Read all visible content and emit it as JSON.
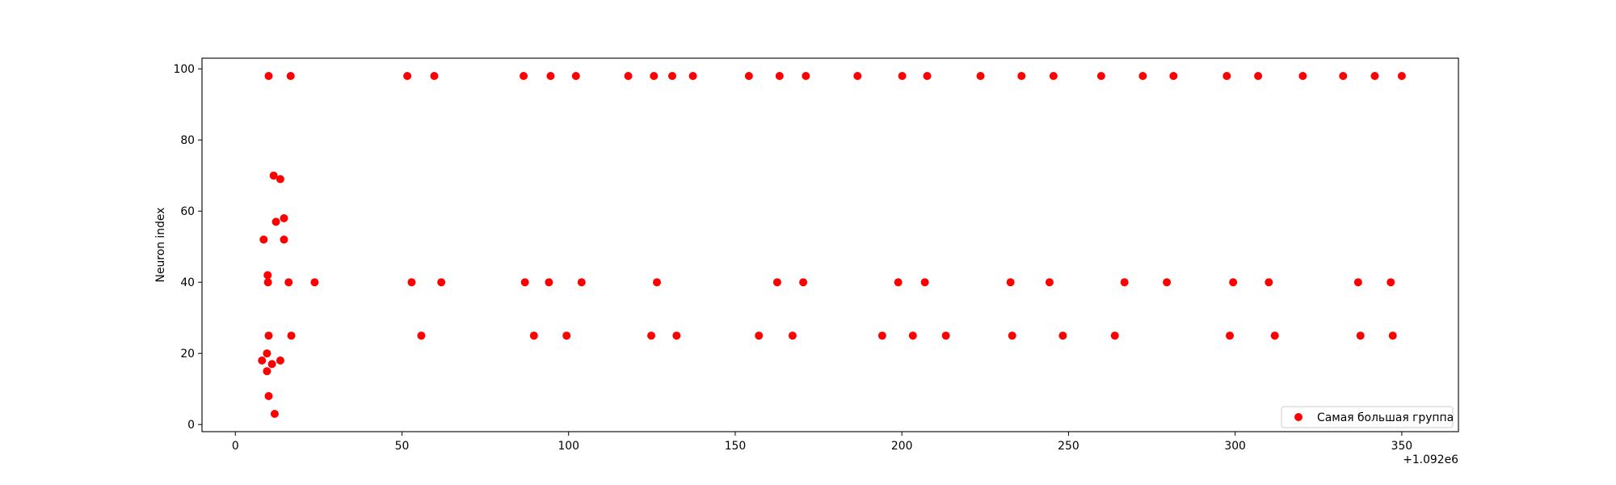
{
  "chart_data": {
    "type": "scatter",
    "title": "",
    "xlabel": "",
    "ylabel": "Neuron index",
    "x_offset_label": "+1.092e6",
    "xlim": [
      -10,
      367
    ],
    "ylim": [
      -2,
      103
    ],
    "x_ticks": [
      0,
      50,
      100,
      150,
      200,
      250,
      300,
      350
    ],
    "y_ticks": [
      0,
      20,
      40,
      60,
      80,
      100
    ],
    "grid": false,
    "legend_position": "lower right",
    "series": [
      {
        "name": "Самая большая группа",
        "color": "#ff0000",
        "points": [
          [
            8,
            18
          ],
          [
            8.5,
            52
          ],
          [
            9.5,
            15
          ],
          [
            9.5,
            20
          ],
          [
            9.7,
            42
          ],
          [
            9.8,
            40
          ],
          [
            10,
            25
          ],
          [
            10,
            98
          ],
          [
            10,
            8
          ],
          [
            11,
            17
          ],
          [
            11.5,
            70
          ],
          [
            11.8,
            3
          ],
          [
            12.2,
            57
          ],
          [
            13.5,
            69
          ],
          [
            13.5,
            18
          ],
          [
            14.6,
            58
          ],
          [
            14.6,
            52
          ],
          [
            16,
            40
          ],
          [
            16.6,
            98
          ],
          [
            16.8,
            25
          ],
          [
            23.8,
            40
          ],
          [
            51.6,
            98
          ],
          [
            52.9,
            40
          ],
          [
            55.8,
            25
          ],
          [
            59.7,
            98
          ],
          [
            61.8,
            40
          ],
          [
            86.5,
            98
          ],
          [
            86.9,
            40
          ],
          [
            89.6,
            25
          ],
          [
            94.1,
            40
          ],
          [
            94.6,
            98
          ],
          [
            99.4,
            25
          ],
          [
            102.2,
            98
          ],
          [
            103.9,
            40
          ],
          [
            117.9,
            98
          ],
          [
            124.8,
            25
          ],
          [
            125.6,
            98
          ],
          [
            126.5,
            40
          ],
          [
            131.1,
            98
          ],
          [
            132.4,
            25
          ],
          [
            137.3,
            98
          ],
          [
            154.1,
            98
          ],
          [
            157.1,
            25
          ],
          [
            162.6,
            40
          ],
          [
            163.3,
            98
          ],
          [
            167.2,
            25
          ],
          [
            170.4,
            40
          ],
          [
            171.2,
            98
          ],
          [
            186.7,
            98
          ],
          [
            194.1,
            25
          ],
          [
            198.9,
            40
          ],
          [
            200.1,
            98
          ],
          [
            203.3,
            25
          ],
          [
            206.9,
            40
          ],
          [
            207.6,
            98
          ],
          [
            213.2,
            25
          ],
          [
            223.6,
            98
          ],
          [
            232.6,
            40
          ],
          [
            233.1,
            25
          ],
          [
            235.9,
            98
          ],
          [
            244.3,
            40
          ],
          [
            245.5,
            98
          ],
          [
            248.3,
            25
          ],
          [
            259.8,
            98
          ],
          [
            263.9,
            25
          ],
          [
            266.8,
            40
          ],
          [
            272.3,
            98
          ],
          [
            279.5,
            40
          ],
          [
            281.5,
            98
          ],
          [
            297.5,
            98
          ],
          [
            298.4,
            25
          ],
          [
            299.4,
            40
          ],
          [
            306.9,
            98
          ],
          [
            310.1,
            40
          ],
          [
            311.9,
            25
          ],
          [
            320.3,
            98
          ],
          [
            332.4,
            98
          ],
          [
            336.9,
            40
          ],
          [
            337.6,
            25
          ],
          [
            341.9,
            98
          ],
          [
            346.7,
            40
          ],
          [
            347.3,
            25
          ],
          [
            350,
            98
          ]
        ]
      }
    ]
  }
}
